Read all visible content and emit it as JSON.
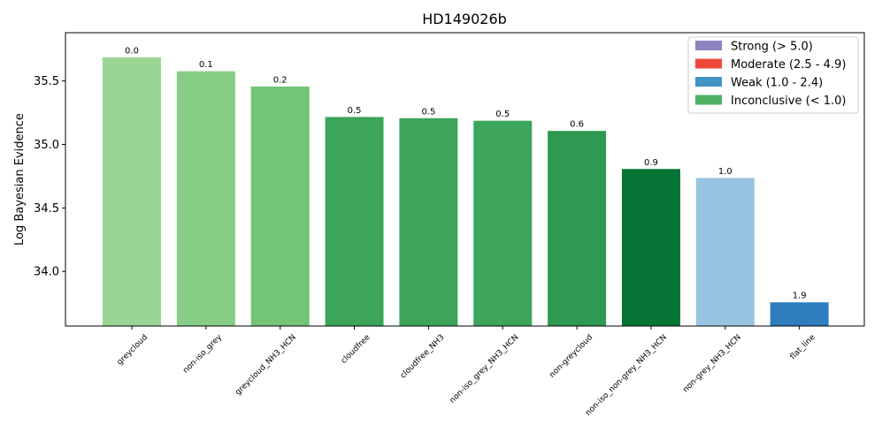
{
  "chart_data": {
    "type": "bar",
    "title": "HD149026b",
    "xlabel": "",
    "ylabel": "Log Bayesian Evidence",
    "ylim": [
      33.57,
      35.88
    ],
    "yticks": [
      "34.0",
      "34.5",
      "35.0",
      "35.5"
    ],
    "ytick_values": [
      34.0,
      34.5,
      35.0,
      35.5
    ],
    "grid": false,
    "legend_position": "top-right",
    "categories": [
      "greycloud",
      "non-iso_grey",
      "greycloud_NH3_HCN",
      "cloudfree",
      "cloudfree_NH3",
      "non-iso_grey_NH3_HCN",
      "non-greycloud",
      "non-iso_non-grey_NH3_HCN",
      "non-grey_NH3_HCN",
      "flat_line"
    ],
    "values": [
      35.69,
      35.58,
      35.46,
      35.22,
      35.21,
      35.19,
      35.11,
      34.81,
      34.74,
      33.76
    ],
    "data_labels": [
      "0.0",
      "0.1",
      "0.2",
      "0.5",
      "0.5",
      "0.5",
      "0.6",
      "0.9",
      "1.0",
      "1.9"
    ],
    "colors": [
      "#99d594",
      "#88cd85",
      "#74c476",
      "#3ca55a",
      "#3ca55a",
      "#3ca55a",
      "#2e9950",
      "#067434",
      "#98c4e1",
      "#2f7cbe"
    ],
    "legend": [
      {
        "label": "Strong (> 5.0)",
        "color": "#8c84c0"
      },
      {
        "label": "Moderate (2.5 - 4.9)",
        "color": "#ef473a"
      },
      {
        "label": "Weak (1.0 - 2.4)",
        "color": "#4393c7"
      },
      {
        "label": "Inconclusive (< 1.0)",
        "color": "#4fb063"
      }
    ]
  }
}
